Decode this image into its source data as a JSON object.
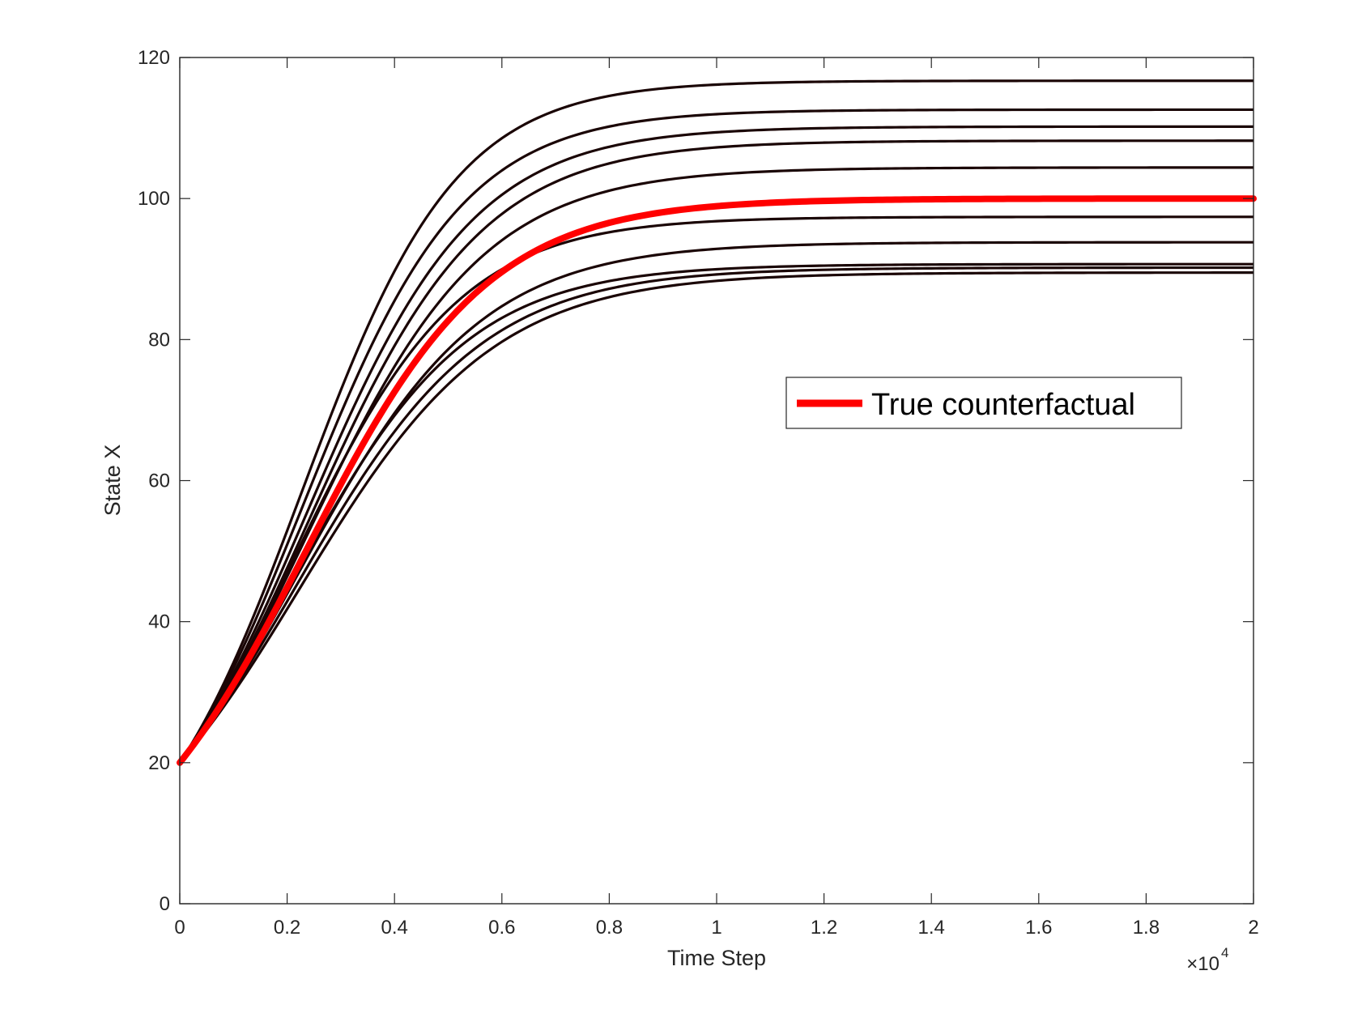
{
  "chart_data": {
    "type": "line",
    "title": "",
    "xlabel": "Time Step",
    "ylabel": "State X",
    "x_exponent_label": "×10",
    "x_exponent_power": "4",
    "xlim": [
      0,
      2
    ],
    "ylim": [
      0,
      120
    ],
    "x_ticks": [
      "0",
      "0.2",
      "0.4",
      "0.6",
      "0.8",
      "1",
      "1.2",
      "1.4",
      "1.6",
      "1.8",
      "2"
    ],
    "y_ticks": [
      "0",
      "20",
      "40",
      "60",
      "80",
      "100",
      "120"
    ],
    "grid": false,
    "legend": {
      "position": "center-right",
      "entries": [
        "True counterfactual"
      ]
    },
    "initial_value": 20,
    "series": [
      {
        "name": "True counterfactual",
        "color": "#ff0000",
        "final_value": 100.0,
        "shape_scale": 1.0,
        "x_at_y": [
          [
            0,
            20
          ],
          [
            0.4,
            66
          ],
          [
            0.6,
            84
          ],
          [
            0.8,
            93
          ],
          [
            1.0,
            97
          ],
          [
            1.2,
            99
          ],
          [
            2.0,
            100
          ]
        ]
      },
      {
        "name": "",
        "color": "#1a0505",
        "final_value": 116.7,
        "shape_scale": 0.85
      },
      {
        "name": "",
        "color": "#1a0505",
        "final_value": 112.6,
        "shape_scale": 0.88
      },
      {
        "name": "",
        "color": "#1a0505",
        "final_value": 110.2,
        "shape_scale": 0.92
      },
      {
        "name": "",
        "color": "#1a0505",
        "final_value": 108.2,
        "shape_scale": 0.95
      },
      {
        "name": "",
        "color": "#1a0505",
        "final_value": 104.4,
        "shape_scale": 0.97
      },
      {
        "name": "",
        "color": "#1a0505",
        "final_value": 97.4,
        "shape_scale": 0.92
      },
      {
        "name": "",
        "color": "#1a0505",
        "final_value": 93.8,
        "shape_scale": 1.0
      },
      {
        "name": "",
        "color": "#1a0505",
        "final_value": 90.7,
        "shape_scale": 0.97
      },
      {
        "name": "",
        "color": "#1a0505",
        "final_value": 90.2,
        "shape_scale": 1.02
      },
      {
        "name": "",
        "color": "#1a0505",
        "final_value": 89.5,
        "shape_scale": 1.06
      }
    ]
  }
}
